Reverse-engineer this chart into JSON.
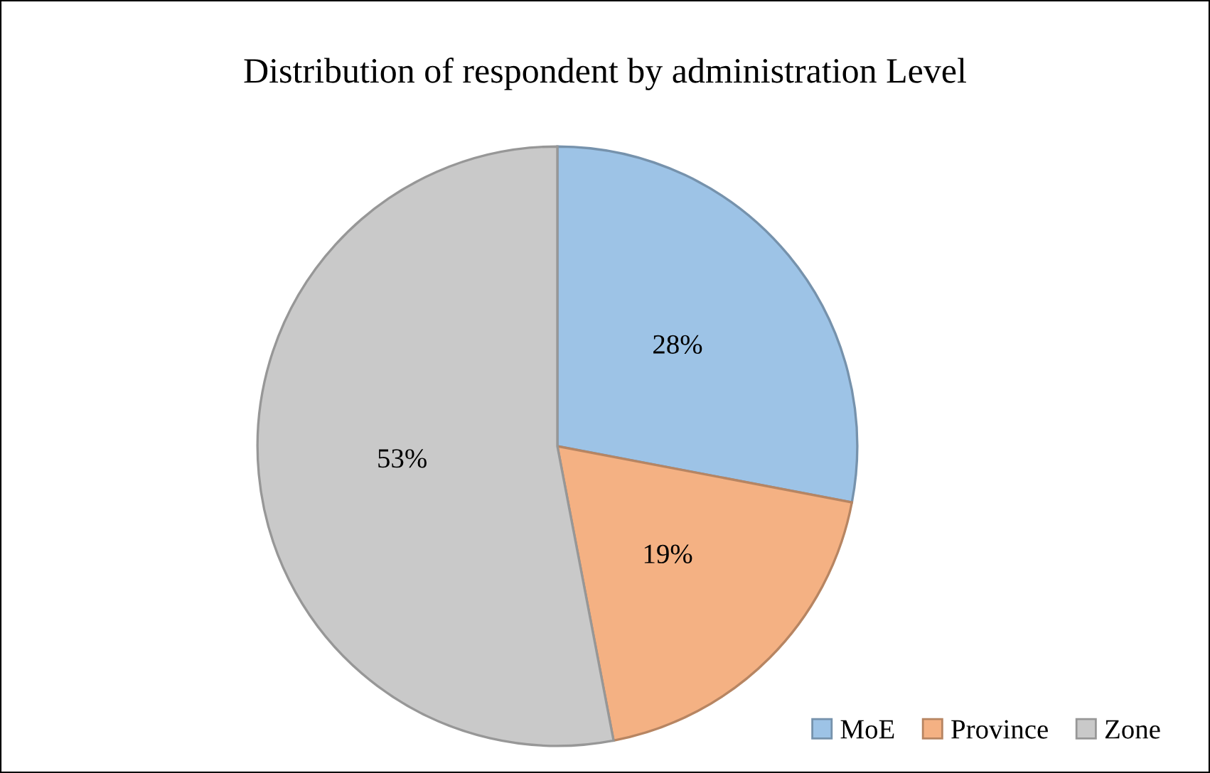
{
  "chart_data": {
    "type": "pie",
    "title": "Distribution of respondent by administration Level",
    "categories": [
      "MoE",
      "Province",
      "Zone"
    ],
    "values": [
      28,
      19,
      53
    ],
    "colors": [
      "#9dc3e6",
      "#f4b183",
      "#c9c9c9"
    ],
    "value_labels": [
      "28%",
      "19%",
      "53%"
    ],
    "legend": "bottom right"
  }
}
